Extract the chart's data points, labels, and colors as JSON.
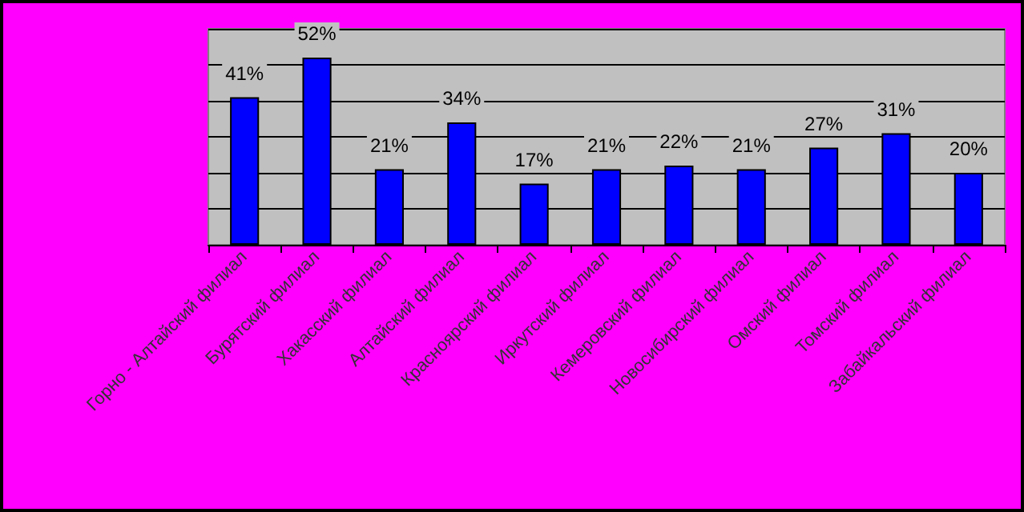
{
  "chart_data": {
    "type": "bar",
    "categories": [
      "Горно - Алтайский филиал",
      "Бурятский филиал",
      "Хакасский филиал",
      "Алтайский филиал",
      "Красноярский филиал",
      "Иркутский филиал",
      "Кемеровский филиал",
      "Новосибирский филиал",
      "Омский филиал",
      "Томский филиал",
      "Забайкальский филиал"
    ],
    "values": [
      41,
      52,
      21,
      34,
      17,
      21,
      22,
      21,
      27,
      31,
      20
    ],
    "value_labels": [
      "41%",
      "52%",
      "21%",
      "34%",
      "17%",
      "21%",
      "22%",
      "21%",
      "27%",
      "31%",
      "20%"
    ],
    "color": "#0000ff",
    "ylim": [
      0,
      60
    ],
    "yticks": [
      {
        "value": 0,
        "label": null
      },
      {
        "value": 10,
        "label": null
      },
      {
        "value": 20,
        "label": null
      },
      {
        "value": 30,
        "label": null
      },
      {
        "value": 40,
        "label": null
      },
      {
        "value": 50,
        "label": null
      },
      {
        "value": 60,
        "label": null
      }
    ],
    "grid": "y",
    "tick_labels": "x"
  }
}
